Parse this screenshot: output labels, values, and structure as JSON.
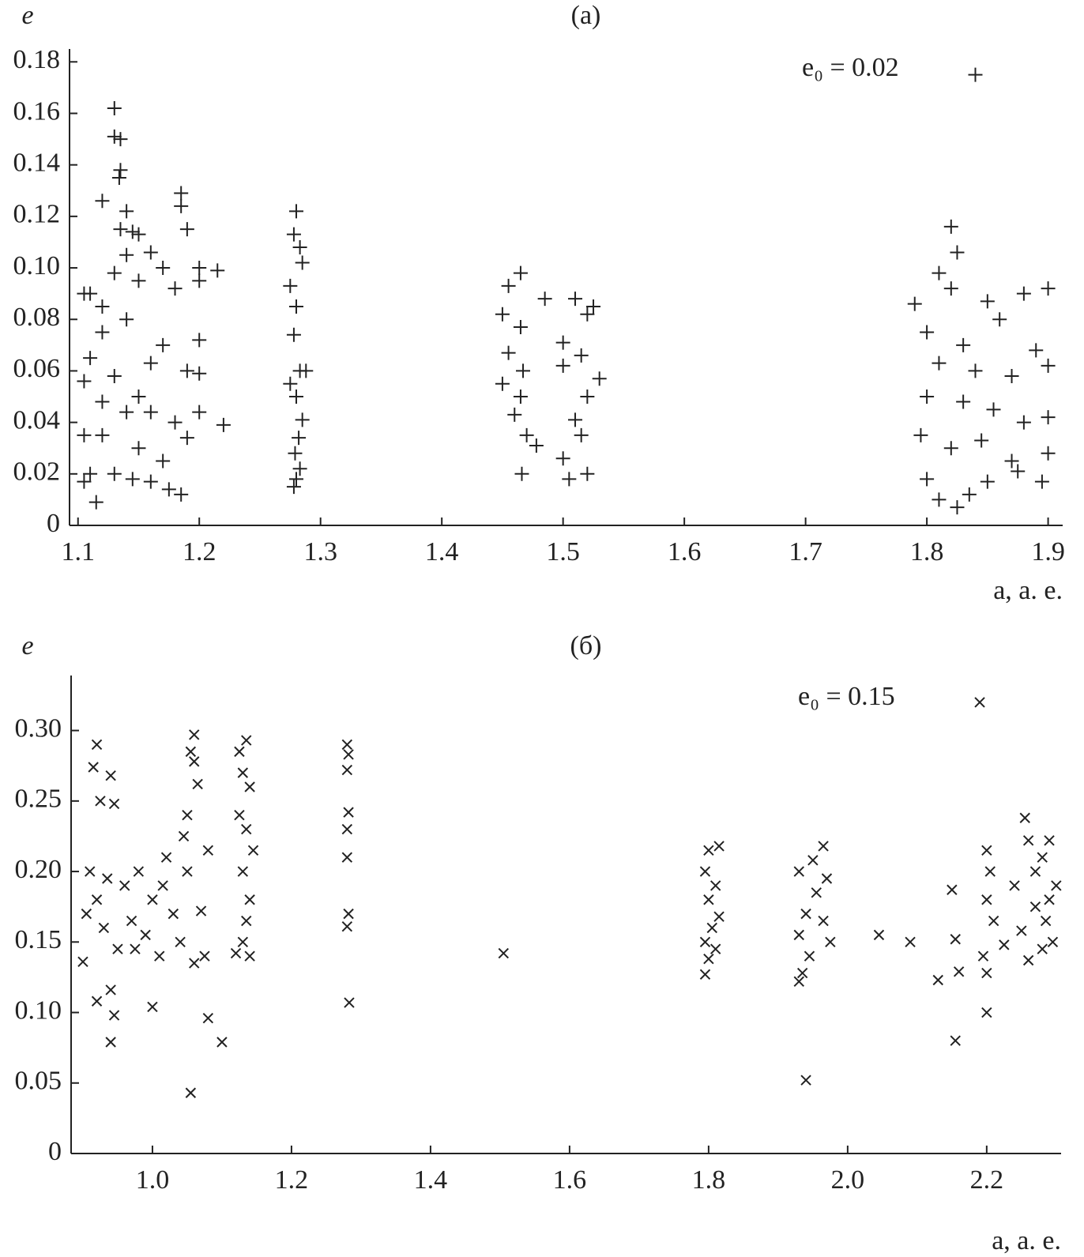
{
  "chart_data": [
    {
      "type": "scatter",
      "title": "(a)",
      "ylabel": "e",
      "xlabel": "a, а. е.",
      "annotation": "e₀ = 0.02",
      "marker": "plus",
      "color": "#222222",
      "xlim": [
        1.093,
        1.912
      ],
      "ylim": [
        0,
        0.185
      ],
      "xticks": [
        1.1,
        1.2,
        1.3,
        1.4,
        1.5,
        1.6,
        1.7,
        1.8,
        1.9
      ],
      "yticks": [
        0,
        0.02,
        0.04,
        0.06,
        0.08,
        {
          "value": 0.1,
          "label": "0.10"
        },
        0.12,
        0.14,
        0.16,
        0.18
      ],
      "x": [
        1.13,
        1.13,
        1.135,
        1.135,
        1.134,
        1.12,
        1.14,
        1.135,
        1.145,
        1.15,
        1.185,
        1.185,
        1.19,
        1.14,
        1.16,
        1.17,
        1.13,
        1.105,
        1.11,
        1.12,
        1.15,
        1.18,
        1.2,
        1.215,
        1.2,
        1.12,
        1.14,
        1.17,
        1.2,
        1.11,
        1.16,
        1.19,
        1.2,
        1.105,
        1.13,
        1.15,
        1.12,
        1.14,
        1.16,
        1.18,
        1.2,
        1.22,
        1.105,
        1.12,
        1.15,
        1.17,
        1.19,
        1.11,
        1.13,
        1.145,
        1.16,
        1.175,
        1.185,
        1.115,
        1.105,
        1.28,
        1.278,
        1.283,
        1.285,
        1.275,
        1.28,
        1.278,
        1.283,
        1.275,
        1.28,
        1.285,
        1.282,
        1.279,
        1.283,
        1.28,
        1.278,
        1.288,
        1.465,
        1.455,
        1.45,
        1.465,
        1.455,
        1.467,
        1.45,
        1.465,
        1.46,
        1.47,
        1.478,
        1.466,
        1.485,
        1.5,
        1.51,
        1.52,
        1.515,
        1.5,
        1.53,
        1.52,
        1.51,
        1.515,
        1.5,
        1.52,
        1.505,
        1.525,
        1.82,
        1.825,
        1.81,
        1.82,
        1.79,
        1.85,
        1.88,
        1.9,
        1.86,
        1.8,
        1.83,
        1.89,
        1.81,
        1.84,
        1.87,
        1.9,
        1.8,
        1.83,
        1.855,
        1.88,
        1.9,
        1.795,
        1.82,
        1.845,
        1.87,
        1.9,
        1.8,
        1.81,
        1.825,
        1.835,
        1.85,
        1.875,
        1.895,
        1.84
      ],
      "y": [
        0.162,
        0.151,
        0.15,
        0.138,
        0.135,
        0.126,
        0.122,
        0.115,
        0.114,
        0.113,
        0.129,
        0.124,
        0.115,
        0.105,
        0.106,
        0.1,
        0.098,
        0.09,
        0.09,
        0.085,
        0.095,
        0.092,
        0.1,
        0.099,
        0.095,
        0.075,
        0.08,
        0.07,
        0.072,
        0.065,
        0.063,
        0.06,
        0.059,
        0.056,
        0.058,
        0.05,
        0.048,
        0.044,
        0.044,
        0.04,
        0.044,
        0.039,
        0.035,
        0.035,
        0.03,
        0.025,
        0.034,
        0.02,
        0.02,
        0.018,
        0.017,
        0.014,
        0.012,
        0.009,
        0.017,
        0.122,
        0.113,
        0.108,
        0.102,
        0.093,
        0.085,
        0.074,
        0.06,
        0.055,
        0.05,
        0.041,
        0.034,
        0.028,
        0.022,
        0.018,
        0.015,
        0.06,
        0.098,
        0.093,
        0.082,
        0.077,
        0.067,
        0.06,
        0.055,
        0.05,
        0.043,
        0.035,
        0.031,
        0.02,
        0.088,
        0.071,
        0.088,
        0.082,
        0.066,
        0.062,
        0.057,
        0.05,
        0.041,
        0.035,
        0.026,
        0.02,
        0.018,
        0.085,
        0.116,
        0.106,
        0.098,
        0.092,
        0.086,
        0.087,
        0.09,
        0.092,
        0.08,
        0.075,
        0.07,
        0.068,
        0.063,
        0.06,
        0.058,
        0.062,
        0.05,
        0.048,
        0.045,
        0.04,
        0.042,
        0.035,
        0.03,
        0.033,
        0.025,
        0.028,
        0.018,
        0.01,
        0.007,
        0.012,
        0.017,
        0.021,
        0.017,
        0.175
      ]
    },
    {
      "type": "scatter",
      "title": "(б)",
      "ylabel": "e",
      "xlabel": "a, а. е.",
      "annotation": "e₀ = 0.15",
      "marker": "cross",
      "color": "#222222",
      "xlim": [
        0.883,
        2.307
      ],
      "ylim": [
        0,
        0.339
      ],
      "xticks": [
        {
          "value": 1,
          "label": "1.0"
        },
        1.2,
        1.4,
        1.6,
        1.8,
        {
          "value": 2,
          "label": "2.0"
        },
        2.2
      ],
      "yticks": [
        0,
        0.05,
        {
          "value": 0.1,
          "label": "0.10"
        },
        0.15,
        {
          "value": 0.2,
          "label": "0.20"
        },
        0.25,
        {
          "value": 0.3,
          "label": "0.30"
        }
      ],
      "x": [
        0.92,
        0.915,
        0.925,
        0.94,
        0.945,
        0.92,
        0.94,
        0.945,
        0.94,
        1.0,
        1.055,
        1.08,
        1.1,
        1.06,
        1.055,
        1.06,
        1.065,
        1.05,
        0.9,
        0.91,
        0.92,
        0.93,
        0.95,
        0.96,
        0.97,
        0.98,
        0.99,
        1.0,
        1.01,
        1.02,
        1.03,
        1.04,
        1.05,
        1.06,
        1.07,
        1.08,
        0.905,
        0.935,
        0.975,
        1.015,
        1.045,
        1.075,
        1.125,
        1.135,
        1.13,
        1.14,
        1.125,
        1.135,
        1.145,
        1.13,
        1.14,
        1.135,
        1.13,
        1.14,
        1.12,
        1.28,
        1.282,
        1.28,
        1.282,
        1.28,
        1.28,
        1.282,
        1.28,
        1.283,
        1.505,
        1.8,
        1.815,
        1.795,
        1.81,
        1.8,
        1.815,
        1.805,
        1.795,
        1.81,
        1.8,
        1.795,
        1.965,
        1.95,
        1.93,
        1.97,
        1.955,
        1.94,
        1.965,
        1.93,
        1.975,
        1.945,
        1.935,
        1.93,
        1.94,
        2.045,
        2.09,
        2.13,
        2.15,
        2.155,
        2.16,
        2.155,
        2.19,
        2.2,
        2.205,
        2.2,
        2.21,
        2.195,
        2.2,
        2.2,
        2.225,
        2.24,
        2.255,
        2.26,
        2.27,
        2.28,
        2.29,
        2.27,
        2.285,
        2.295,
        2.26,
        2.25,
        2.3,
        2.28,
        2.29
      ],
      "y": [
        0.29,
        0.274,
        0.25,
        0.268,
        0.248,
        0.108,
        0.116,
        0.098,
        0.079,
        0.104,
        0.043,
        0.096,
        0.079,
        0.297,
        0.285,
        0.278,
        0.262,
        0.24,
        0.136,
        0.2,
        0.18,
        0.16,
        0.145,
        0.19,
        0.165,
        0.2,
        0.155,
        0.18,
        0.14,
        0.21,
        0.17,
        0.15,
        0.2,
        0.135,
        0.172,
        0.215,
        0.17,
        0.195,
        0.145,
        0.19,
        0.225,
        0.14,
        0.285,
        0.293,
        0.27,
        0.26,
        0.24,
        0.23,
        0.215,
        0.2,
        0.18,
        0.165,
        0.15,
        0.14,
        0.142,
        0.29,
        0.283,
        0.272,
        0.242,
        0.23,
        0.21,
        0.17,
        0.161,
        0.107,
        0.142,
        0.215,
        0.218,
        0.2,
        0.19,
        0.18,
        0.168,
        0.16,
        0.15,
        0.145,
        0.138,
        0.127,
        0.218,
        0.208,
        0.2,
        0.195,
        0.185,
        0.17,
        0.165,
        0.155,
        0.15,
        0.14,
        0.128,
        0.122,
        0.052,
        0.155,
        0.15,
        0.123,
        0.187,
        0.152,
        0.129,
        0.08,
        0.32,
        0.215,
        0.2,
        0.18,
        0.165,
        0.14,
        0.128,
        0.1,
        0.148,
        0.19,
        0.238,
        0.222,
        0.2,
        0.21,
        0.222,
        0.175,
        0.165,
        0.15,
        0.137,
        0.158,
        0.19,
        0.145,
        0.18
      ]
    }
  ]
}
